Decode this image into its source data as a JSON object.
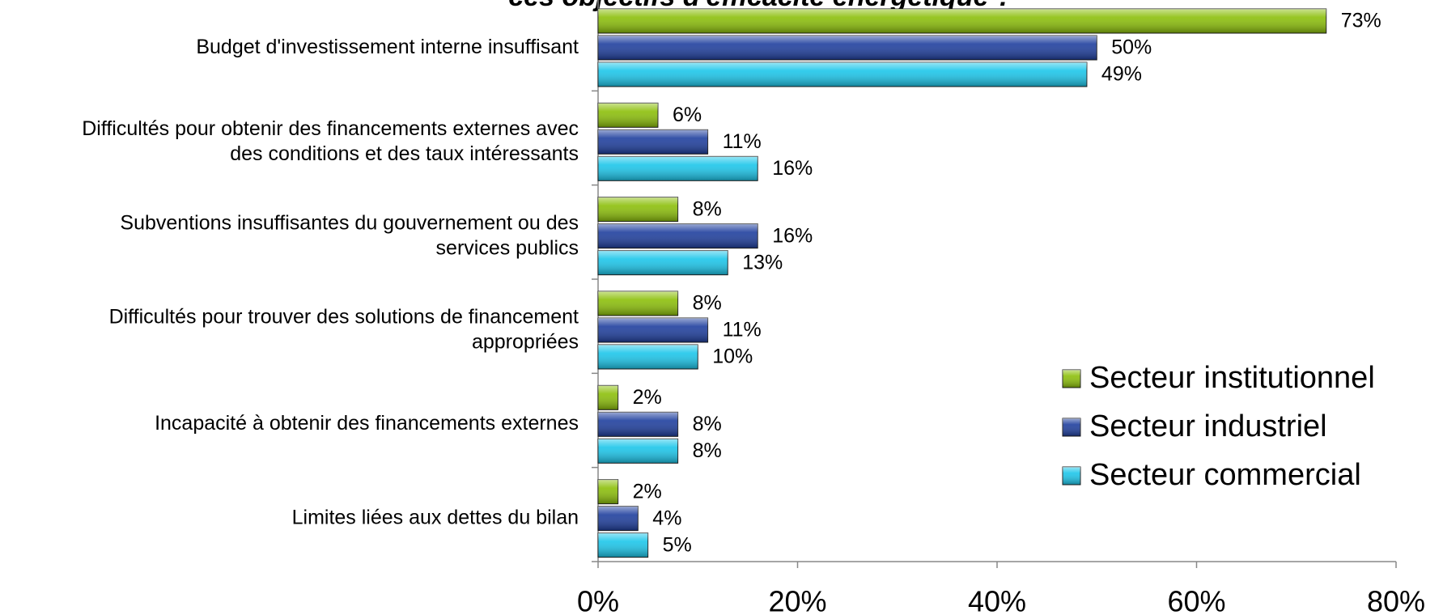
{
  "chart_data": {
    "type": "barh",
    "title": "ces objectifs d'efficacité énergétique ?",
    "categories": [
      "Budget d'investissement interne insuffisant",
      "Difficultés pour obtenir des financements externes avec\ndes conditions et des taux intéressants",
      "Subventions insuffisantes du gouvernement ou des\nservices publics",
      "Difficultés pour trouver des solutions de financement\nappropriées",
      "Incapacité à obtenir des financements externes",
      "Limites liées aux dettes du bilan"
    ],
    "series": [
      {
        "name": "Secteur institutionnel",
        "color": "#8cbf0a",
        "values": [
          73,
          6,
          8,
          8,
          2,
          2
        ],
        "value_labels": [
          "73%",
          "6%",
          "8%",
          "8%",
          "2%",
          "2%"
        ]
      },
      {
        "name": "Secteur industriel",
        "color": "#1f3f9e",
        "values": [
          50,
          11,
          16,
          11,
          8,
          4
        ],
        "value_labels": [
          "50%",
          "11%",
          "16%",
          "11%",
          "8%",
          "4%"
        ]
      },
      {
        "name": "Secteur commercial",
        "color": "#1cc6ea",
        "values": [
          49,
          16,
          13,
          10,
          8,
          5
        ],
        "value_labels": [
          "49%",
          "16%",
          "13%",
          "10%",
          "8%",
          "5%"
        ]
      }
    ],
    "xlim": [
      0,
      80
    ],
    "xticks": [
      {
        "value": 0,
        "label": "0%"
      },
      {
        "value": 20,
        "label": "20%"
      },
      {
        "value": 40,
        "label": "40%"
      },
      {
        "value": 60,
        "label": "60%"
      },
      {
        "value": 80,
        "label": "80%"
      }
    ],
    "legend": "lower right"
  }
}
